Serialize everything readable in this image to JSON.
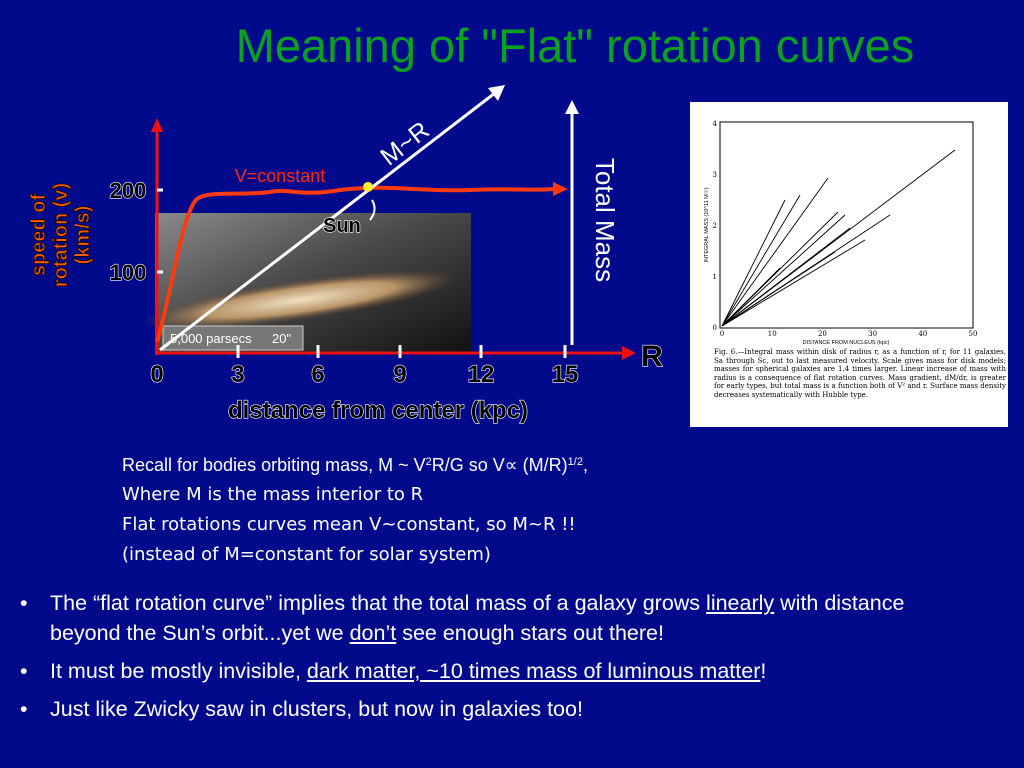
{
  "title": "Meaning of \"Flat\" rotation curves",
  "diagram": {
    "y_axis_label": [
      "speed of",
      "rotation (v)",
      "(km/s)"
    ],
    "y_ticks": [
      "200",
      "100"
    ],
    "x_ticks": [
      "0",
      "3",
      "6",
      "9",
      "12",
      "15"
    ],
    "x_axis_label": "distance from center (kpc)",
    "x_end_label": "R",
    "curve_label": "V=constant",
    "sun_label": "Sun",
    "line_label": "M~R",
    "total_mass_label": "Total Mass",
    "scale_bar": [
      "5,000 parsecs",
      "20\""
    ]
  },
  "inset": {
    "y_axis_label": "INTEGRAL MASS (10^11 M☉)",
    "x_axis_label": "DISTANCE FROM NUCLEUS (kpc)",
    "x_ticks": [
      "0",
      "10",
      "20",
      "30",
      "40",
      "50"
    ],
    "y_ticks": [
      "0",
      "1",
      "2",
      "3",
      "4"
    ],
    "caption": "Fig. 6.—Integral mass within disk of radius r, as a function of r, for 11 galaxies, Sa through Sc, out to last measured velocity. Scale gives mass for disk models; masses for spherical galaxies are 1.4 times larger. Linear increase of mass with radius is a consequence of flat rotation curves. Mass gradient, dM/dr, is greater for early types, but total mass is a function both of V² and r. Surface mass density decreases systematically with Hubble type."
  },
  "recall": [
    [
      {
        "text": "Recall for bodies orbiting mass, M ~ V"
      },
      {
        "text": "2",
        "sup": true
      },
      {
        "text": "R/G so V∝ (M/R)"
      },
      {
        "text": "1/2",
        "sup": true
      },
      {
        "text": ","
      }
    ],
    [
      {
        "text": "Where M is the mass interior to R"
      }
    ],
    [
      {
        "text": "Flat rotations curves mean V~constant, so M~R !!"
      }
    ],
    [
      {
        "text": "(instead of M=constant for solar system)"
      }
    ]
  ],
  "bullets": [
    [
      {
        "text": "The “flat rotation curve” implies that the total mass of a galaxy grows "
      },
      {
        "text": "linearly",
        "underline": true
      },
      {
        "text": " with distance beyond the Sun’s orbit...yet we "
      },
      {
        "text": "don’t",
        "underline": true
      },
      {
        "text": " see enough stars out there!"
      }
    ],
    [
      {
        "text": "It must be mostly invisible, "
      },
      {
        "text": "dark matter, ~10 times mass of luminous matter",
        "underline": true
      },
      {
        "text": "!"
      }
    ],
    [
      {
        "text": "Just like Zwicky saw in clusters, but now in galaxies too!"
      }
    ]
  ]
}
